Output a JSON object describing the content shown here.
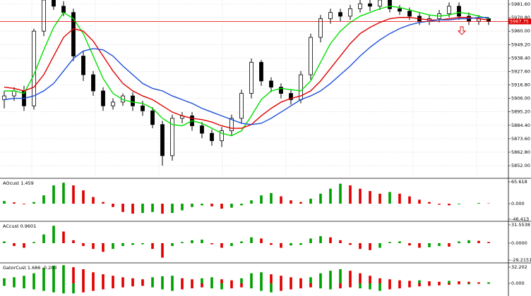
{
  "chart_data": [
    {
      "type": "candlestick",
      "bull_color": "#ffffff",
      "bear_color": "#000000",
      "grid": true,
      "current_price": 5967.75,
      "current_color": "#e00000",
      "ylim": [
        5842.4,
        5985
      ],
      "yticks": [
        {
          "value": 5852,
          "label": "5852.00"
        },
        {
          "value": 5862.8,
          "label": "5862.80"
        },
        {
          "value": 5873.6,
          "label": "5873.60"
        },
        {
          "value": 5884.4,
          "label": "5884.40"
        },
        {
          "value": 5895.2,
          "label": "5895.20"
        },
        {
          "value": 5906,
          "label": "5906.00"
        },
        {
          "value": 5916.8,
          "label": "5916.80"
        },
        {
          "value": 5927.6,
          "label": "5927.60"
        },
        {
          "value": 5938.4,
          "label": "5938.40"
        },
        {
          "value": 5949.2,
          "label": "5949.20"
        },
        {
          "value": 5960,
          "label": "5960.00"
        },
        {
          "value": 5970.8,
          "label": "5970.80"
        },
        {
          "value": 5981.6,
          "label": "5981.60"
        }
      ],
      "open": [
        5905,
        5908,
        5912,
        5900,
        5960,
        5985,
        5980,
        5975,
        5940,
        5925,
        5912,
        5900,
        5903,
        5908,
        5900,
        5896,
        5885,
        5860,
        5890,
        5892,
        5884,
        5878,
        5872,
        5880,
        5890,
        5910,
        5935,
        5920,
        5915,
        5910,
        5905,
        5925,
        5955,
        5970,
        5975,
        5972,
        5978,
        5982,
        5980,
        5985,
        5978,
        5976,
        5972,
        5968,
        5970,
        5974,
        5980,
        5972,
        5968,
        5970
      ],
      "high": [
        5912,
        5915,
        5916,
        5962,
        5987,
        5990,
        5984,
        5978,
        5944,
        5928,
        5915,
        5906,
        5910,
        5911,
        5904,
        5899,
        5888,
        5893,
        5895,
        5895,
        5887,
        5881,
        5883,
        5893,
        5913,
        5938,
        5937,
        5923,
        5918,
        5913,
        5928,
        5958,
        5973,
        5978,
        5978,
        5981,
        5985,
        5985,
        5988,
        5987,
        5981,
        5979,
        5975,
        5973,
        5977,
        5983,
        5983,
        5975,
        5973,
        5971
      ],
      "low": [
        5898,
        5904,
        5896,
        5897,
        5956,
        5977,
        5972,
        5936,
        5920,
        5908,
        5896,
        5897,
        5900,
        5896,
        5892,
        5882,
        5852,
        5856,
        5886,
        5880,
        5874,
        5868,
        5867,
        5876,
        5886,
        5906,
        5916,
        5911,
        5906,
        5901,
        5902,
        5921,
        5951,
        5966,
        5968,
        5969,
        5975,
        5976,
        5977,
        5975,
        5973,
        5969,
        5965,
        5965,
        5967,
        5971,
        5969,
        5965,
        5965,
        5965
      ],
      "close": [
        5908,
        5912,
        5900,
        5960,
        5985,
        5980,
        5975,
        5940,
        5925,
        5912,
        5900,
        5903,
        5908,
        5900,
        5896,
        5885,
        5860,
        5890,
        5892,
        5884,
        5878,
        5872,
        5880,
        5890,
        5910,
        5935,
        5920,
        5915,
        5910,
        5905,
        5925,
        5955,
        5970,
        5975,
        5972,
        5978,
        5982,
        5980,
        5985,
        5978,
        5976,
        5972,
        5968,
        5970,
        5974,
        5980,
        5972,
        5968,
        5970,
        5967.75
      ],
      "series": [
        {
          "color": "#00e000",
          "values": [
            5912,
            5912,
            5910,
            5925,
            5945,
            5963,
            5975,
            5970,
            5958,
            5940,
            5922,
            5910,
            5905,
            5903,
            5902,
            5898,
            5890,
            5885,
            5884,
            5888,
            5886,
            5882,
            5878,
            5876,
            5880,
            5892,
            5905,
            5912,
            5914,
            5913,
            5912,
            5920,
            5935,
            5950,
            5960,
            5967,
            5972,
            5975,
            5978,
            5980,
            5979,
            5977,
            5975,
            5973,
            5972,
            5973,
            5975,
            5974,
            5972,
            5970
          ]
        },
        {
          "color": "#e00000",
          "values": [
            5915,
            5914,
            5912,
            5915,
            5925,
            5940,
            5955,
            5962,
            5960,
            5952,
            5940,
            5928,
            5918,
            5912,
            5908,
            5905,
            5900,
            5895,
            5892,
            5890,
            5889,
            5887,
            5884,
            5882,
            5882,
            5885,
            5892,
            5898,
            5903,
            5906,
            5908,
            5912,
            5920,
            5930,
            5940,
            5950,
            5958,
            5963,
            5967,
            5970,
            5971,
            5971,
            5970,
            5969,
            5969,
            5970,
            5971,
            5971,
            5970,
            5969
          ]
        },
        {
          "color": "#1f4fd8",
          "values": [
            5905,
            5906,
            5906,
            5908,
            5912,
            5918,
            5928,
            5938,
            5944,
            5946,
            5945,
            5940,
            5932,
            5925,
            5918,
            5914,
            5912,
            5908,
            5905,
            5902,
            5898,
            5895,
            5892,
            5889,
            5886,
            5885,
            5886,
            5890,
            5895,
            5900,
            5905,
            5908,
            5912,
            5918,
            5925,
            5932,
            5940,
            5947,
            5953,
            5958,
            5962,
            5965,
            5967,
            5968,
            5969,
            5969,
            5970,
            5970,
            5971,
            5971
          ]
        }
      ]
    },
    {
      "type": "bar",
      "title": "AOcust 1.459",
      "up_color": "#00a000",
      "down_color": "#e00000",
      "ylim": [
        -50.8,
        74.1
      ],
      "yticks": [
        {
          "value": -46.413,
          "label": "-46.413"
        },
        {
          "value": 0,
          "label": "0.000"
        },
        {
          "value": 65.618,
          "label": "65.618"
        }
      ],
      "series": [
        {
          "values": [
            8,
            4,
            -2,
            5,
            25,
            55,
            63,
            55,
            40,
            20,
            5,
            -10,
            -25,
            -30,
            -28,
            -25,
            -30,
            -28,
            -20,
            -10,
            -5,
            -8,
            -15,
            -12,
            -5,
            10,
            25,
            32,
            22,
            10,
            5,
            15,
            30,
            45,
            60,
            55,
            45,
            38,
            30,
            35,
            30,
            22,
            12,
            5,
            -3,
            -5,
            -2,
            0,
            2,
            1
          ]
        }
      ]
    },
    {
      "type": "bar",
      "title": "ACcust 0.9601",
      "up_color": "#00a000",
      "down_color": "#e00000",
      "ylim": [
        -32.8,
        36.4
      ],
      "yticks": [
        {
          "value": -29.2151,
          "label": "-29.2151"
        },
        {
          "value": 0,
          "label": "0.0000"
        },
        {
          "value": 31.5538,
          "label": "31.5538"
        }
      ],
      "series": [
        {
          "values": [
            3,
            -5,
            -8,
            2,
            15,
            30,
            20,
            5,
            -5,
            -10,
            -15,
            -10,
            -5,
            -3,
            -2,
            -10,
            -25,
            -5,
            2,
            5,
            6,
            -2,
            -8,
            -5,
            3,
            10,
            8,
            -3,
            -8,
            -4,
            -3,
            8,
            12,
            10,
            5,
            -3,
            -10,
            -12,
            -8,
            2,
            3,
            -4,
            -8,
            -7,
            -5,
            -6,
            3,
            5,
            4,
            2
          ]
        }
      ]
    },
    {
      "type": "bar",
      "title": "GatorCust 1.686 -0.203",
      "up_color": "#00a000",
      "down_color": "#e00000",
      "ylim": [
        -25.2,
        39.2
      ],
      "yticks": [
        {
          "value": 0,
          "label": "0.000"
        },
        {
          "value": 32.202,
          "label": "32.202"
        }
      ],
      "series": [
        {
          "values": [
            10,
            12,
            15,
            20,
            30,
            35,
            36,
            32,
            28,
            22,
            18,
            15,
            12,
            10,
            8,
            12,
            14,
            15,
            10,
            8,
            10,
            12,
            8,
            6,
            10,
            20,
            22,
            18,
            15,
            12,
            10,
            12,
            20,
            25,
            28,
            25,
            20,
            15,
            10,
            8,
            6,
            5,
            6,
            4,
            3,
            5,
            4,
            3,
            2,
            2
          ]
        },
        {
          "values": [
            -5,
            -8,
            -10,
            -12,
            -15,
            -18,
            -20,
            -20,
            -18,
            -15,
            -12,
            -10,
            -8,
            -6,
            -5,
            -8,
            -12,
            -15,
            -12,
            -10,
            -8,
            -10,
            -12,
            -10,
            -8,
            -10,
            -15,
            -18,
            -15,
            -12,
            -10,
            -8,
            -10,
            -12,
            -10,
            -8,
            -10,
            -12,
            -15,
            -12,
            -10,
            -8,
            -6,
            -5,
            -4,
            -3,
            -2,
            -2,
            -1,
            -1
          ]
        }
      ]
    }
  ]
}
